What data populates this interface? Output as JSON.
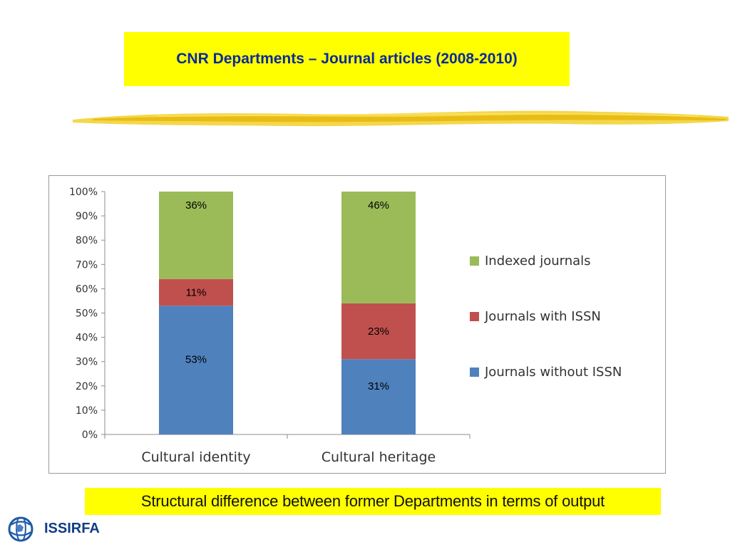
{
  "slide": {
    "title": "CNR Departments – Journal articles (2008-2010)",
    "caption": "Structural difference between former Departments in terms of output",
    "logo_text": "ISSIRFA"
  },
  "colors": {
    "accent_yellow": "#ffff00",
    "title_blue": "#0b2a9a",
    "indexed": "#9bbb59",
    "with_issn": "#c0504d",
    "without_issn": "#4f81bd"
  },
  "chart_data": {
    "type": "bar",
    "stacked": true,
    "percent": true,
    "categories": [
      "Cultural identity",
      "Cultural heritage"
    ],
    "series": [
      {
        "name": "Journals without ISSN",
        "values": [
          53,
          31
        ],
        "labels": [
          "53%",
          "31%"
        ],
        "color": "#4f81bd"
      },
      {
        "name": "Journals with ISSN",
        "values": [
          11,
          23
        ],
        "labels": [
          "11%",
          "23%"
        ],
        "color": "#c0504d"
      },
      {
        "name": "Indexed journals",
        "values": [
          36,
          46
        ],
        "labels": [
          "36%",
          "46%"
        ],
        "color": "#9bbb59"
      }
    ],
    "ylim": [
      0,
      100
    ],
    "yticks": [
      "0%",
      "10%",
      "20%",
      "30%",
      "40%",
      "50%",
      "60%",
      "70%",
      "80%",
      "90%",
      "100%"
    ],
    "legend_order": [
      "Indexed journals",
      "Journals with ISSN",
      "Journals without ISSN"
    ],
    "legend_position": "right",
    "grid": false
  }
}
